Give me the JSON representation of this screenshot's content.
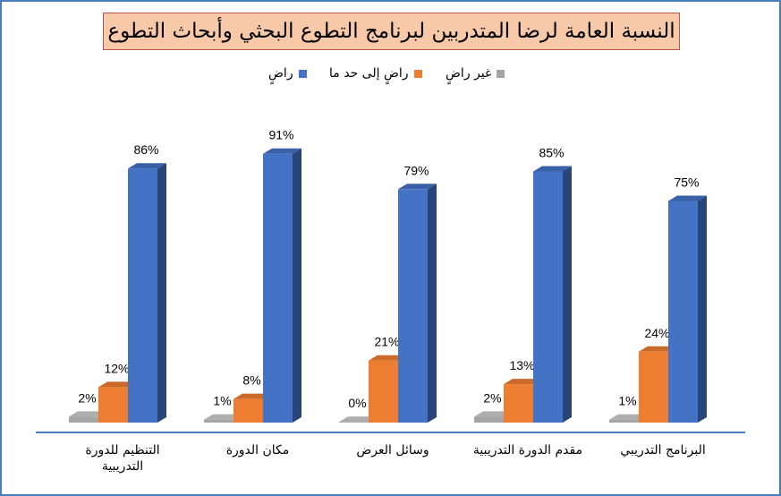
{
  "chart_data": {
    "type": "bar",
    "title": "النسبة العامة لرضا المتدربين لبرنامج التطوع البحثي وأبحاث التطوع",
    "categories": [
      "التنظيم للدورة التدريبية",
      "مكان الدورة",
      "وسائل العرض",
      "مقدم الدورة التدريبية",
      "البرنامج التدريبي"
    ],
    "series": [
      {
        "name": "غير راضٍ",
        "color": "#a5a5a5",
        "values": [
          2,
          1,
          0,
          2,
          1
        ],
        "labels": [
          "2%",
          "1%",
          "0%",
          "2%",
          "1%"
        ]
      },
      {
        "name": "راضٍ إلى حد ما",
        "color": "#ed7d31",
        "values": [
          12,
          8,
          21,
          13,
          24
        ],
        "labels": [
          "12%",
          "8%",
          "21%",
          "13%",
          "24%"
        ]
      },
      {
        "name": "راضٍ",
        "color": "#4472c4",
        "values": [
          86,
          91,
          79,
          85,
          75
        ],
        "labels": [
          "86%",
          "91%",
          "79%",
          "85%",
          "75%"
        ]
      }
    ],
    "ylim": [
      0,
      100
    ],
    "grid": false,
    "legend_position": "top",
    "style": "3d-column"
  }
}
